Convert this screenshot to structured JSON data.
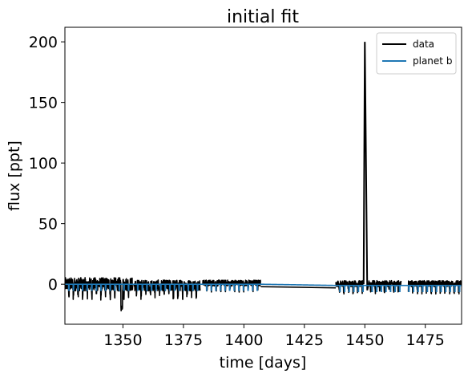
{
  "chart_data": {
    "type": "line",
    "title": "initial fit",
    "xlabel": "time [days]",
    "ylabel": "flux [ppt]",
    "xlim": [
      1326,
      1490
    ],
    "ylim": [
      -33,
      212
    ],
    "xticks": [
      1350,
      1375,
      1400,
      1425,
      1450,
      1475
    ],
    "yticks": [
      0,
      50,
      100,
      150,
      200
    ],
    "grid": false,
    "legend_position": "top-right",
    "series": [
      {
        "name": "data",
        "color": "#000000",
        "segments": [
          {
            "t0": 1326,
            "t1": 1354,
            "base": 0,
            "noise": 5.5,
            "transit_depth": 8,
            "period": 1.9,
            "phase": 0.4
          },
          {
            "t0": 1354.5,
            "t1": 1382,
            "base": -1,
            "noise": 4.5,
            "transit_depth": 7,
            "period": 1.9,
            "phase": 0.9
          },
          {
            "t0": 1383,
            "t1": 1407,
            "base": 1,
            "noise": 2.5,
            "transit_depth": 5,
            "period": 1.9,
            "phase": 0.3
          },
          {
            "t0": 1438,
            "t1": 1449.5,
            "base": 0.5,
            "noise": 2.5,
            "transit_depth": 6,
            "period": 1.9,
            "phase": 0.6
          },
          {
            "t0": 1451.5,
            "t1": 1465,
            "base": 0.5,
            "noise": 2.5,
            "transit_depth": 6,
            "period": 1.9,
            "phase": 1.1
          },
          {
            "t0": 1468,
            "t1": 1490,
            "base": 0.5,
            "noise": 2.5,
            "transit_depth": 6,
            "period": 1.9,
            "phase": 0.2
          }
        ],
        "gap_lines": [
          {
            "x": [
              1407,
              1438
            ],
            "y": [
              -2,
              -3
            ]
          }
        ],
        "spike": {
          "x": [
            1449.5,
            1450,
            1451,
            1451.5
          ],
          "y": [
            0,
            200,
            -5,
            0
          ]
        },
        "dip": {
          "x": 1349.5,
          "y": -22
        }
      },
      {
        "name": "planet b",
        "color": "#1f77b4",
        "baseline": [
          [
            1326,
            0
          ],
          [
            1407,
            0
          ],
          [
            1438,
            -1
          ],
          [
            1490,
            -1
          ]
        ],
        "transit_depth": 5,
        "period": 1.9,
        "phase": 0.4
      }
    ]
  }
}
